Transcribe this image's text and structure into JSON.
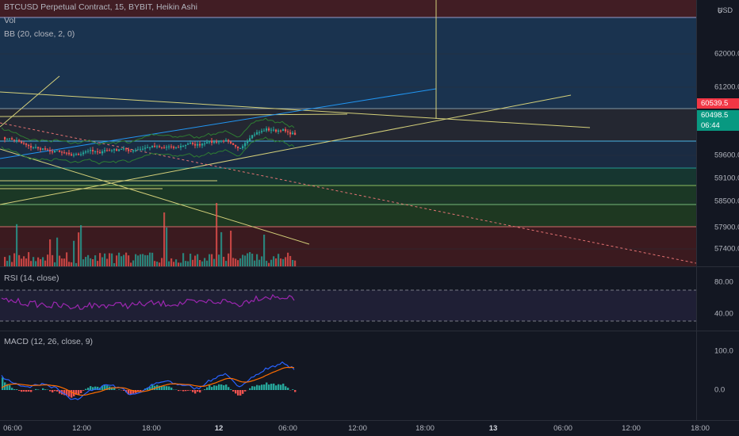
{
  "header": {
    "symbol_line": "BTCUSD Perpetual Contract, 15, BYBIT, Heikin Ashi",
    "vol_label": "Vol",
    "bb_label": "BB (20, close, 2, 0)"
  },
  "price_axis": {
    "currency": "USD",
    "top_partial": "6",
    "ticks": [
      "62000.0",
      "61200.0",
      "59600.0",
      "59100.0",
      "58500.0",
      "57900.0",
      "57400.0"
    ],
    "last_price": "60539.5",
    "current_price": "60498.5",
    "countdown": "06:44",
    "colors": {
      "last_price_bg": "#f23645",
      "current_price_bg": "#089981"
    }
  },
  "rsi": {
    "label": "RSI (14, close)",
    "ticks": [
      "80.00",
      "40.00"
    ],
    "color": "#9c27b0"
  },
  "macd": {
    "label": "MACD (12, 26, close, 9)",
    "ticks": [
      "100.0",
      "0.0"
    ],
    "macd_color": "#2962ff",
    "signal_color": "#ff6d00"
  },
  "time_axis": {
    "labels": [
      "06:00",
      "12:00",
      "18:00",
      "12",
      "06:00",
      "12:00",
      "18:00",
      "13",
      "06:00",
      "12:00",
      "18:00"
    ]
  },
  "colors": {
    "up": "#26a69a",
    "down": "#ef5350",
    "bb": "#2e7d32",
    "trendline": "#d4d07a",
    "ray": "#2196f3"
  }
}
